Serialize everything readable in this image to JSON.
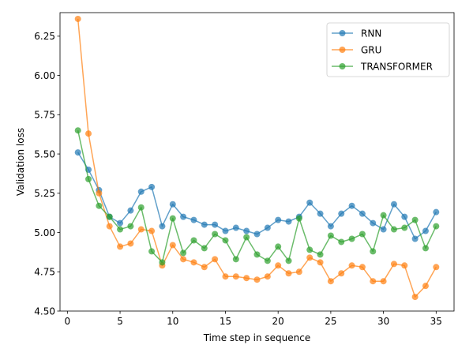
{
  "chart_data": {
    "type": "line",
    "xlabel": "Time step in sequence",
    "ylabel": "Validation loss",
    "xlim": [
      -0.7,
      36.7
    ],
    "ylim": [
      4.5,
      6.4
    ],
    "xticks": [
      0,
      5,
      10,
      15,
      20,
      25,
      30,
      35
    ],
    "yticks": [
      4.5,
      4.75,
      5.0,
      5.25,
      5.5,
      5.75,
      6.0,
      6.25
    ],
    "xtick_labels": [
      "0",
      "5",
      "10",
      "15",
      "20",
      "25",
      "30",
      "35"
    ],
    "ytick_labels": [
      "4.50",
      "4.75",
      "5.00",
      "5.25",
      "5.50",
      "5.75",
      "6.00",
      "6.25"
    ],
    "grid": false,
    "legend_position": "top-right",
    "x": [
      1,
      2,
      3,
      4,
      5,
      6,
      7,
      8,
      9,
      10,
      11,
      12,
      13,
      14,
      15,
      16,
      17,
      18,
      19,
      20,
      21,
      22,
      23,
      24,
      25,
      26,
      27,
      28,
      29,
      30,
      31,
      32,
      33,
      34,
      35
    ],
    "series": [
      {
        "name": "RNN",
        "color": "#1f77b4",
        "values": [
          5.51,
          5.4,
          5.27,
          5.1,
          5.06,
          5.14,
          5.26,
          5.29,
          5.04,
          5.18,
          5.1,
          5.08,
          5.05,
          5.05,
          5.01,
          5.03,
          5.01,
          4.99,
          5.03,
          5.08,
          5.07,
          5.1,
          5.19,
          5.12,
          5.04,
          5.12,
          5.17,
          5.12,
          5.06,
          5.02,
          5.18,
          5.1,
          4.96,
          5.01,
          5.13
        ]
      },
      {
        "name": "GRU",
        "color": "#ff7f0e",
        "values": [
          6.36,
          5.63,
          5.25,
          5.04,
          4.91,
          4.93,
          5.02,
          5.01,
          4.79,
          4.92,
          4.83,
          4.81,
          4.78,
          4.83,
          4.72,
          4.72,
          4.71,
          4.7,
          4.72,
          4.79,
          4.74,
          4.75,
          4.84,
          4.81,
          4.69,
          4.74,
          4.79,
          4.78,
          4.69,
          4.69,
          4.8,
          4.79,
          4.59,
          4.66,
          4.78
        ]
      },
      {
        "name": "TRANSFORMER",
        "color": "#2ca02c",
        "values": [
          5.65,
          5.34,
          5.17,
          5.1,
          5.02,
          5.04,
          5.16,
          4.88,
          4.81,
          5.09,
          4.87,
          4.95,
          4.9,
          4.99,
          4.95,
          4.83,
          4.97,
          4.86,
          4.82,
          4.91,
          4.82,
          5.09,
          4.89,
          4.86,
          4.98,
          4.94,
          4.96,
          4.99,
          4.88,
          5.11,
          5.02,
          5.03,
          5.08,
          4.9,
          5.04
        ]
      }
    ]
  }
}
